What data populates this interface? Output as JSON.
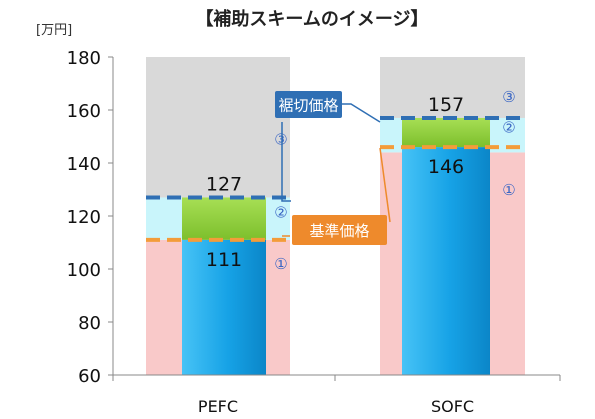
{
  "chart_data": {
    "type": "bar",
    "title": "【補助スキームのイメージ】",
    "unit_label": "[万円]",
    "ylim": [
      60,
      180
    ],
    "yticks": [
      60,
      80,
      100,
      120,
      140,
      160,
      180
    ],
    "categories": [
      "PEFC",
      "SOFC"
    ],
    "bars": [
      {
        "category": "PEFC",
        "base_price": 111,
        "cap_price": 127,
        "max_price": 180,
        "base_label": "111",
        "cap_label": "127"
      },
      {
        "category": "SOFC",
        "base_price": 146,
        "cap_price": 157,
        "max_price": 180,
        "base_label": "146",
        "cap_label": "157",
        "region2_top": 157,
        "region1_top": 144
      }
    ],
    "region_marks": [
      "①",
      "②",
      "③"
    ],
    "callouts": {
      "cap_price": "裾切価格",
      "base_price": "基準価格"
    },
    "colors": {
      "region1": "#f9c9c9",
      "region2": "#c9f5fb",
      "region3": "#d9d9d9",
      "bar_blue": "#1fa6e8",
      "bar_green": "#8ccc3a",
      "base_line": "#f39c3a",
      "cap_line": "#2f6fb4",
      "callout_blue": "#2f6fb4",
      "callout_orange": "#ee8a2c",
      "region_mark": "#3a66c4"
    }
  }
}
